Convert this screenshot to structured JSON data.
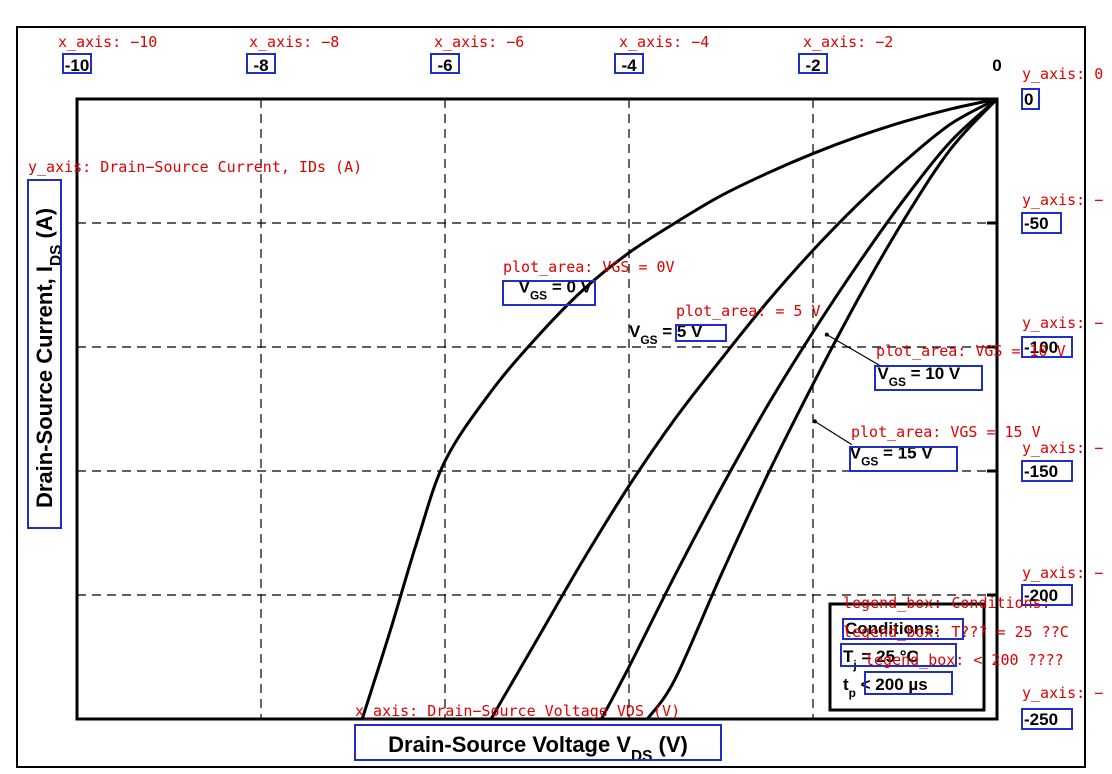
{
  "chart_data": {
    "type": "line",
    "xlabel": "Drain-Source Voltage V_DS (V)",
    "ylabel": "Drain-Source Current, I_DS (A)",
    "xlim": [
      -10,
      0
    ],
    "ylim": [
      -250,
      0
    ],
    "x_ticks": [
      "-10",
      "-8",
      "-6",
      "-4",
      "-2",
      "0"
    ],
    "y_ticks": [
      "0",
      "-50",
      "-100",
      "-150",
      "-200",
      "-250"
    ],
    "grid": true,
    "series": [
      {
        "name": "V_GS = 0 V",
        "x": [
          0,
          -0.5,
          -1.0,
          -1.5,
          -2.0,
          -2.5,
          -3.0,
          -3.5,
          -4.0,
          -4.5,
          -5.0,
          -5.5,
          -6.0,
          -6.3,
          -6.6,
          -6.9
        ],
        "y": [
          0,
          -4,
          -9,
          -15,
          -22,
          -30,
          -39,
          -50,
          -62,
          -77,
          -96,
          -118,
          -146,
          -178,
          -215,
          -250
        ]
      },
      {
        "name": "V_GS = 5 V",
        "x": [
          0,
          -0.5,
          -1.0,
          -1.5,
          -2.0,
          -2.5,
          -3.0,
          -3.5,
          -4.0,
          -4.5,
          -5.0,
          -5.5
        ],
        "y": [
          0,
          -10,
          -25,
          -42,
          -61,
          -82,
          -105,
          -129,
          -156,
          -186,
          -218,
          -250
        ]
      },
      {
        "name": "V_GS = 10 V",
        "x": [
          0,
          -0.5,
          -1.0,
          -1.5,
          -2.0,
          -2.5,
          -3.0,
          -3.5,
          -4.0,
          -4.3
        ],
        "y": [
          0,
          -17,
          -40,
          -66,
          -94,
          -124,
          -157,
          -192,
          -229,
          -250
        ]
      },
      {
        "name": "V_GS = 15 V",
        "x": [
          0,
          -0.5,
          -1.0,
          -1.5,
          -2.0,
          -2.5,
          -3.0,
          -3.5,
          -3.8
        ],
        "y": [
          0,
          -20,
          -48,
          -80,
          -115,
          -152,
          -192,
          -234,
          -250
        ]
      }
    ],
    "curve_labels": [
      {
        "prefix": "V",
        "sub": "GS",
        "value": " = 0 V",
        "at": [
          -5.2,
          -78
        ]
      },
      {
        "prefix": "V",
        "sub": "GS",
        "value": " = 5 V",
        "at": [
          -4.0,
          -96
        ]
      },
      {
        "prefix": "V",
        "sub": "GS",
        "value": " = 10 V",
        "at": [
          -1.3,
          -113
        ],
        "arrow_to": [
          -1.85,
          -95
        ]
      },
      {
        "prefix": "V",
        "sub": "GS",
        "value": " = 15 V",
        "at": [
          -1.6,
          -145
        ],
        "arrow_to": [
          -1.98,
          -130
        ]
      }
    ],
    "legend": {
      "placement": "bottom-right",
      "title": "Conditions:",
      "items": [
        {
          "prefix": "T",
          "sub": "j",
          "value": " = 25 °C"
        },
        {
          "prefix": "t",
          "sub": "p",
          "value": " < 200 µs"
        }
      ]
    }
  },
  "annotations": [
    {
      "text": "x_axis: −10"
    },
    {
      "text": "x_axis: −8"
    },
    {
      "text": "x_axis: −6"
    },
    {
      "text": "x_axis: −4"
    },
    {
      "text": "x_axis: −2"
    },
    {
      "text": "y_axis: 0"
    },
    {
      "text": "y_axis: −"
    },
    {
      "text": "y_axis: −"
    },
    {
      "text": "y_axis: −"
    },
    {
      "text": "y_axis: −"
    },
    {
      "text": "y_axis: −"
    },
    {
      "text": "y_axis: Drain−Source Current, IDs (A)"
    },
    {
      "text": "x_axis: Drain−Source Voltage VDS (V)"
    },
    {
      "text": "plot_area: VGS = 0V"
    },
    {
      "text": "plot_area: = 5 V"
    },
    {
      "text": "plot_area: VGS = 10 V"
    },
    {
      "text": "plot_area: VGS = 15 V"
    },
    {
      "text": "legend_box: Conditions:"
    },
    {
      "text": "legend_box: T??? = 25 ??C"
    },
    {
      "text": "legend_box: < 200 ????"
    }
  ],
  "colors": {
    "annotation": "#e00000",
    "annotation_box": "#1f2fc4",
    "curve": "#000000"
  }
}
